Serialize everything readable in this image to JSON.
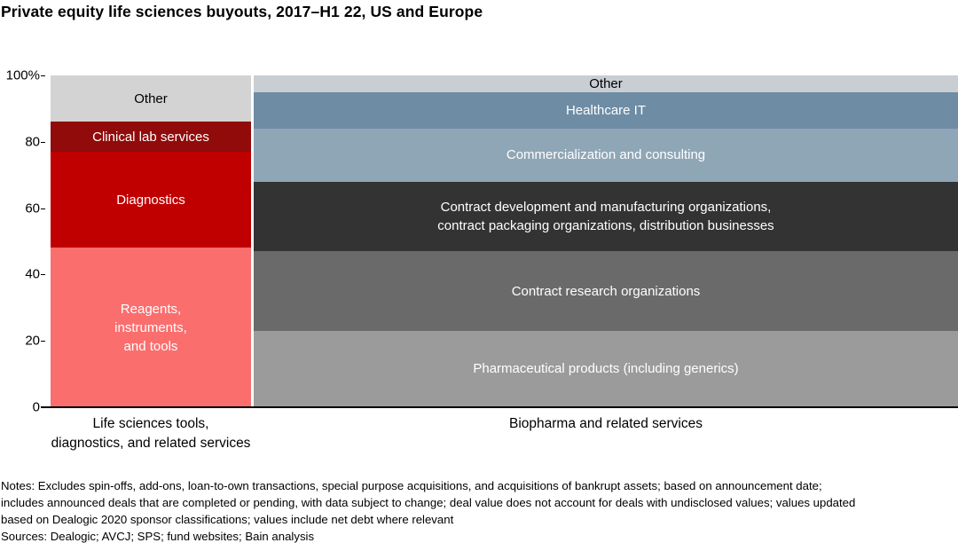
{
  "title": "Private equity life sciences buyouts, 2017–H1 22, US and Europe",
  "chart_data": {
    "type": "bar",
    "subtype": "100% stacked column",
    "title": "Private equity life sciences buyouts, 2017–H1 22, US and Europe",
    "unit": "%",
    "ylim": [
      0,
      100
    ],
    "grid": false,
    "legend": "none (labels inside segments)",
    "y_ticks": [
      "100%",
      "80",
      "60",
      "40",
      "20",
      "0"
    ],
    "bars": [
      {
        "category": "Life sciences tools,\ndiagnostics, and related services",
        "segments": [
          {
            "label": "Reagents,\ninstruments,\nand tools",
            "value": 48,
            "color": "#fb6e6e",
            "text_color": "#ffffff"
          },
          {
            "label": "Diagnostics",
            "value": 29,
            "color": "#c00000",
            "text_color": "#ffffff"
          },
          {
            "label": "Clinical lab services",
            "value": 9,
            "color": "#910b0b",
            "text_color": "#ffffff"
          },
          {
            "label": "Other",
            "value": 14,
            "color": "#d3d3d3",
            "text_color": "#000000"
          }
        ]
      },
      {
        "category": "Biopharma and related services",
        "segments": [
          {
            "label": "Pharmaceutical products (including generics)",
            "value": 23,
            "color": "#9b9b9b",
            "text_color": "#ffffff"
          },
          {
            "label": "Contract research organizations",
            "value": 24,
            "color": "#6a6a6a",
            "text_color": "#ffffff"
          },
          {
            "label": "Contract development and manufacturing organizations,\ncontract packaging organizations, distribution businesses",
            "value": 21,
            "color": "#333333",
            "text_color": "#ffffff"
          },
          {
            "label": "Commercialization and consulting",
            "value": 16,
            "color": "#8fa6b6",
            "text_color": "#ffffff"
          },
          {
            "label": "Healthcare IT",
            "value": 11,
            "color": "#6e8ca4",
            "text_color": "#ffffff"
          },
          {
            "label": "Other",
            "value": 5,
            "color": "#c9ced3",
            "text_color": "#000000"
          }
        ]
      }
    ]
  },
  "notes": {
    "lines": [
      "Notes: Excludes spin-offs, add-ons, loan-to-own transactions, special purpose acquisitions, and acquisitions of bankrupt assets; based on announcement date;",
      "includes announced deals that are completed or pending, with data subject to change; deal value does not account for deals with undisclosed values; values updated",
      "based on Dealogic 2020 sponsor classifications; values include net debt where relevant",
      "Sources: Dealogic; AVCJ; SPS; fund websites; Bain analysis"
    ]
  }
}
